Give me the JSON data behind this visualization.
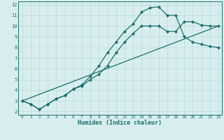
{
  "xlabel": "Humidex (Indice chaleur)",
  "bg_color": "#d8eeee",
  "grid_color": "#b8d8d8",
  "line_color": "#1a6e6e",
  "xlim": [
    -0.5,
    23.4
  ],
  "ylim": [
    1.7,
    12.3
  ],
  "xticks": [
    0,
    1,
    2,
    3,
    4,
    5,
    6,
    7,
    8,
    9,
    10,
    11,
    12,
    13,
    14,
    15,
    16,
    17,
    18,
    19,
    20,
    21,
    22,
    23
  ],
  "yticks": [
    2,
    3,
    4,
    5,
    6,
    7,
    8,
    9,
    10,
    11,
    12
  ],
  "line1_x": [
    0,
    1,
    2,
    3,
    4,
    5,
    6,
    7,
    8,
    9,
    10,
    11,
    12,
    13,
    14,
    15,
    16,
    17,
    18,
    19,
    20,
    21,
    22,
    23
  ],
  "line1_y": [
    3.0,
    2.7,
    2.2,
    2.7,
    3.2,
    3.5,
    4.1,
    4.4,
    5.0,
    5.5,
    6.3,
    7.5,
    8.5,
    9.3,
    10.0,
    10.0,
    10.0,
    9.5,
    9.5,
    10.4,
    10.4,
    10.1,
    10.0,
    10.0
  ],
  "line2_x": [
    0,
    1,
    2,
    3,
    4,
    5,
    6,
    7,
    8,
    9,
    10,
    11,
    12,
    13,
    14,
    15,
    16,
    17,
    18,
    19,
    20,
    21,
    22,
    23
  ],
  "line2_y": [
    3.0,
    2.7,
    2.2,
    2.7,
    3.2,
    3.5,
    4.1,
    4.5,
    5.3,
    6.3,
    7.5,
    8.5,
    9.5,
    10.2,
    11.3,
    11.7,
    11.8,
    11.0,
    11.0,
    9.0,
    8.5,
    8.3,
    8.1,
    8.0
  ],
  "line3_x": [
    0,
    23
  ],
  "line3_y": [
    3.0,
    10.0
  ],
  "marker": "D",
  "markersize": 2.2,
  "linewidth": 0.9
}
